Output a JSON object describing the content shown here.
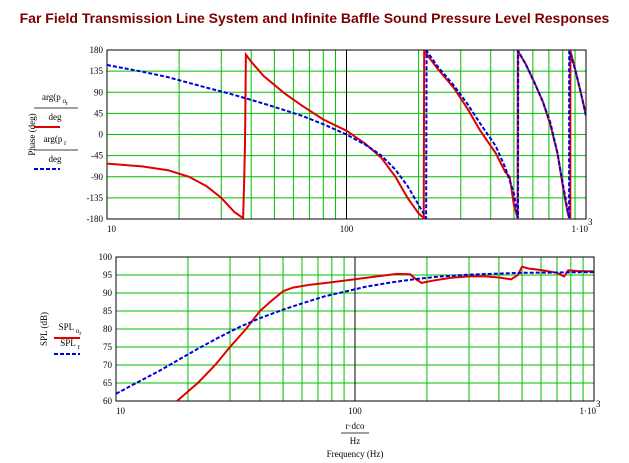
{
  "title": "Far Field Transmission Line System and Infinite Baffle Sound Pressure Level Responses",
  "colors": {
    "title": "#7b0000",
    "grid": "#00c000",
    "series_red": "#e00000",
    "series_blue": "#0000dd",
    "major_grid": "#000000"
  },
  "chart_data": [
    {
      "type": "line",
      "x_scale": "log",
      "xlim": [
        10,
        1000
      ],
      "ylim": [
        -180,
        180
      ],
      "grid": true,
      "ylabel": "Phase (deg)",
      "x_tick_labels": [
        "10",
        "100",
        "1·10"
      ],
      "x_tick_exponent": "3",
      "y_tick_labels": [
        "180",
        "135",
        "90",
        "45",
        "0",
        "-45",
        "-90",
        "-135",
        "-180"
      ],
      "legend": [
        {
          "num": "arg(p",
          "sub": "o",
          "subsub": "r",
          "den": "deg",
          "color": "#e00000",
          "dash": "solid"
        },
        {
          "num": "arg(p",
          "sub": "r",
          "den": "deg",
          "color": "#0000dd",
          "dash": "dashed"
        }
      ],
      "series": [
        {
          "color": "#e00000",
          "dash": "solid",
          "points": [
            [
              10,
              -62
            ],
            [
              14,
              -68
            ],
            [
              18,
              -76
            ],
            [
              22,
              -90
            ],
            [
              26,
              -110
            ],
            [
              30,
              -135
            ],
            [
              34,
              -165
            ],
            [
              37,
              -178
            ],
            [
              37.4,
              -95
            ],
            [
              37.7,
              -20
            ],
            [
              38,
              170
            ],
            [
              40,
              155
            ],
            [
              45,
              125
            ],
            [
              55,
              88
            ],
            [
              65,
              62
            ],
            [
              80,
              32
            ],
            [
              100,
              8
            ],
            [
              120,
              -20
            ],
            [
              140,
              -50
            ],
            [
              160,
              -90
            ],
            [
              180,
              -135
            ],
            [
              200,
              -168
            ],
            [
              210,
              -178
            ],
            [
              211,
              178
            ],
            [
              240,
              140
            ],
            [
              280,
              100
            ],
            [
              320,
              55
            ],
            [
              360,
              10
            ],
            [
              420,
              -40
            ],
            [
              460,
              -80
            ],
            [
              480,
              -90
            ],
            [
              500,
              -150
            ],
            [
              518,
              -178
            ],
            [
              519,
              178
            ],
            [
              560,
              150
            ],
            [
              610,
              110
            ],
            [
              660,
              70
            ],
            [
              710,
              20
            ],
            [
              760,
              -40
            ],
            [
              800,
              -110
            ],
            [
              840,
              -170
            ],
            [
              860,
              -178
            ],
            [
              861,
              178
            ],
            [
              900,
              140
            ],
            [
              960,
              80
            ],
            [
              1000,
              40
            ]
          ]
        },
        {
          "color": "#0000dd",
          "dash": "dashed",
          "points": [
            [
              10,
              148
            ],
            [
              14,
              134
            ],
            [
              18,
              122
            ],
            [
              22,
              110
            ],
            [
              26,
              100
            ],
            [
              32,
              88
            ],
            [
              38,
              77
            ],
            [
              45,
              66
            ],
            [
              55,
              52
            ],
            [
              65,
              40
            ],
            [
              80,
              22
            ],
            [
              100,
              0
            ],
            [
              120,
              -22
            ],
            [
              140,
              -45
            ],
            [
              160,
              -75
            ],
            [
              180,
              -110
            ],
            [
              200,
              -150
            ],
            [
              215,
              -178
            ],
            [
              216,
              178
            ],
            [
              240,
              145
            ],
            [
              280,
              105
            ],
            [
              320,
              65
            ],
            [
              360,
              25
            ],
            [
              420,
              -25
            ],
            [
              460,
              -70
            ],
            [
              500,
              -125
            ],
            [
              520,
              -178
            ],
            [
              521,
              178
            ],
            [
              560,
              150
            ],
            [
              610,
              110
            ],
            [
              660,
              70
            ],
            [
              710,
              25
            ],
            [
              760,
              -40
            ],
            [
              800,
              -105
            ],
            [
              850,
              -178
            ],
            [
              851,
              178
            ],
            [
              900,
              140
            ],
            [
              960,
              80
            ],
            [
              1000,
              40
            ]
          ]
        }
      ]
    },
    {
      "type": "line",
      "x_scale": "log",
      "xlim": [
        10,
        1000
      ],
      "ylim": [
        60,
        100
      ],
      "grid": true,
      "ylabel": "SPL (dB)",
      "x_tick_labels": [
        "10",
        "100",
        "1·10"
      ],
      "x_tick_exponent": "3",
      "y_tick_labels": [
        "100",
        "95",
        "90",
        "85",
        "80",
        "75",
        "70",
        "65",
        "60"
      ],
      "xlabel_num": "r·dco",
      "xlabel_den": "Hz",
      "xlabel": "Frequency (Hz)",
      "legend": [
        {
          "num": "SPL",
          "sub": "o",
          "subsub": "r",
          "color": "#e00000",
          "dash": "solid"
        },
        {
          "num": "SPL",
          "sub": "r",
          "color": "#0000dd",
          "dash": "dashed"
        }
      ],
      "series": [
        {
          "color": "#e00000",
          "dash": "solid",
          "points": [
            [
              18,
              60
            ],
            [
              22,
              65
            ],
            [
              26,
              70
            ],
            [
              30,
              75
            ],
            [
              35,
              80
            ],
            [
              40,
              85
            ],
            [
              45,
              88
            ],
            [
              50,
              90.5
            ],
            [
              55,
              91.5
            ],
            [
              65,
              92.3
            ],
            [
              80,
              93
            ],
            [
              100,
              93.8
            ],
            [
              130,
              94.8
            ],
            [
              150,
              95.3
            ],
            [
              170,
              95.2
            ],
            [
              180,
              93.8
            ],
            [
              190,
              92.8
            ],
            [
              210,
              93.4
            ],
            [
              250,
              94.2
            ],
            [
              300,
              94.6
            ],
            [
              350,
              94.6
            ],
            [
              400,
              94.3
            ],
            [
              450,
              93.8
            ],
            [
              480,
              95
            ],
            [
              500,
              97.3
            ],
            [
              530,
              96.8
            ],
            [
              600,
              96.4
            ],
            [
              700,
              95.6
            ],
            [
              750,
              94.6
            ],
            [
              780,
              96.3
            ],
            [
              850,
              96.1
            ],
            [
              1000,
              96
            ]
          ]
        },
        {
          "color": "#0000dd",
          "dash": "dashed",
          "points": [
            [
              10,
              62
            ],
            [
              12,
              64.8
            ],
            [
              15,
              68.2
            ],
            [
              18,
              71.2
            ],
            [
              22,
              74.5
            ],
            [
              27,
              77.7
            ],
            [
              33,
              80.6
            ],
            [
              40,
              83
            ],
            [
              50,
              85.4
            ],
            [
              60,
              87.1
            ],
            [
              75,
              89.1
            ],
            [
              90,
              90.3
            ],
            [
              110,
              91.7
            ],
            [
              140,
              92.9
            ],
            [
              180,
              93.9
            ],
            [
              230,
              94.6
            ],
            [
              300,
              95.1
            ],
            [
              400,
              95.4
            ],
            [
              500,
              95.6
            ],
            [
              700,
              95.7
            ],
            [
              1000,
              95.8
            ]
          ]
        }
      ]
    }
  ]
}
